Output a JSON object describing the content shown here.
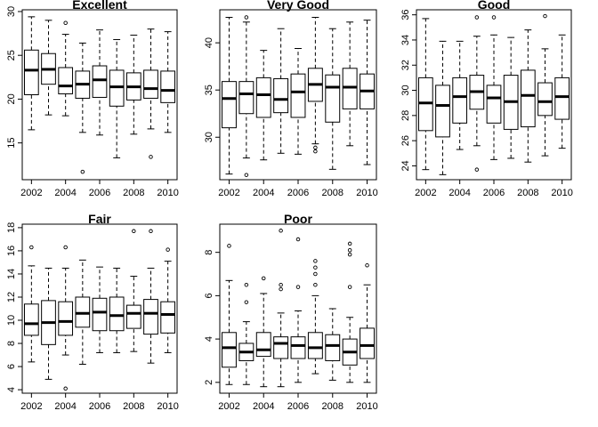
{
  "chart_data": [
    {
      "type": "box",
      "title": "Excellent",
      "xlabel": "",
      "ylabel": "",
      "x_ticks": [
        "2002",
        "2004",
        "2006",
        "2008",
        "2010"
      ],
      "y_ticks": [
        "15",
        "20",
        "25",
        "30"
      ],
      "ylim": [
        10.8,
        30.2
      ],
      "categories": [
        "2002",
        "2003",
        "2004",
        "2005",
        "2006",
        "2007",
        "2008",
        "2009",
        "2010"
      ],
      "boxes": [
        {
          "min": 16.5,
          "q1": 20.5,
          "median": 23.3,
          "q3": 25.6,
          "max": 29.4,
          "outliers": []
        },
        {
          "min": 18.2,
          "q1": 21.7,
          "median": 23.4,
          "q3": 25.2,
          "max": 29.0,
          "outliers": []
        },
        {
          "min": 18.1,
          "q1": 20.6,
          "median": 21.5,
          "q3": 23.6,
          "max": 27.4,
          "outliers": [
            28.7
          ]
        },
        {
          "min": 16.2,
          "q1": 20.1,
          "median": 21.7,
          "q3": 23.2,
          "max": 26.4,
          "outliers": [
            11.7
          ]
        },
        {
          "min": 15.9,
          "q1": 20.2,
          "median": 22.2,
          "q3": 23.8,
          "max": 27.9,
          "outliers": []
        },
        {
          "min": 13.3,
          "q1": 19.2,
          "median": 21.4,
          "q3": 23.3,
          "max": 26.8,
          "outliers": []
        },
        {
          "min": 16.0,
          "q1": 19.9,
          "median": 21.4,
          "q3": 23.0,
          "max": 27.3,
          "outliers": []
        },
        {
          "min": 16.6,
          "q1": 20.1,
          "median": 21.2,
          "q3": 23.3,
          "max": 28.0,
          "outliers": [
            13.4
          ]
        },
        {
          "min": 16.2,
          "q1": 19.6,
          "median": 21.0,
          "q3": 23.2,
          "max": 27.7,
          "outliers": []
        }
      ]
    },
    {
      "type": "box",
      "title": "Very Good",
      "xlabel": "",
      "ylabel": "",
      "x_ticks": [
        "2002",
        "2004",
        "2006",
        "2008",
        "2010"
      ],
      "y_ticks": [
        "30",
        "35",
        "40"
      ],
      "ylim": [
        25.5,
        43.5
      ],
      "categories": [
        "2002",
        "2003",
        "2004",
        "2005",
        "2006",
        "2007",
        "2008",
        "2009",
        "2010"
      ],
      "boxes": [
        {
          "min": 26.1,
          "q1": 31.0,
          "median": 34.1,
          "q3": 35.9,
          "max": 42.7,
          "outliers": []
        },
        {
          "min": 27.8,
          "q1": 32.5,
          "median": 34.6,
          "q3": 35.9,
          "max": 42.2,
          "outliers": [
            42.7,
            26.0
          ]
        },
        {
          "min": 27.6,
          "q1": 32.1,
          "median": 34.5,
          "q3": 36.3,
          "max": 39.2,
          "outliers": []
        },
        {
          "min": 28.3,
          "q1": 32.6,
          "median": 34.0,
          "q3": 36.2,
          "max": 41.5,
          "outliers": []
        },
        {
          "min": 28.2,
          "q1": 32.1,
          "median": 34.8,
          "q3": 36.7,
          "max": 39.4,
          "outliers": []
        },
        {
          "min": 29.3,
          "q1": 33.8,
          "median": 35.6,
          "q3": 37.3,
          "max": 42.7,
          "outliers": [
            28.9,
            28.5
          ]
        },
        {
          "min": 26.6,
          "q1": 31.6,
          "median": 35.3,
          "q3": 36.6,
          "max": 41.5,
          "outliers": []
        },
        {
          "min": 29.1,
          "q1": 33.0,
          "median": 35.3,
          "q3": 37.3,
          "max": 42.2,
          "outliers": []
        },
        {
          "min": 27.1,
          "q1": 33.0,
          "median": 34.9,
          "q3": 36.7,
          "max": 42.4,
          "outliers": []
        }
      ]
    },
    {
      "type": "box",
      "title": "Good",
      "xlabel": "",
      "ylabel": "",
      "x_ticks": [
        "2002",
        "2004",
        "2006",
        "2008",
        "2010"
      ],
      "y_ticks": [
        "24",
        "26",
        "28",
        "30",
        "32",
        "34",
        "36"
      ],
      "ylim": [
        22.9,
        36.4
      ],
      "categories": [
        "2002",
        "2003",
        "2004",
        "2005",
        "2006",
        "2007",
        "2008",
        "2009",
        "2010"
      ],
      "boxes": [
        {
          "min": 23.7,
          "q1": 26.8,
          "median": 29.0,
          "q3": 31.0,
          "max": 35.7,
          "outliers": []
        },
        {
          "min": 23.3,
          "q1": 26.3,
          "median": 28.8,
          "q3": 30.4,
          "max": 33.9,
          "outliers": []
        },
        {
          "min": 25.3,
          "q1": 27.4,
          "median": 29.5,
          "q3": 31.0,
          "max": 33.9,
          "outliers": []
        },
        {
          "min": 25.6,
          "q1": 28.5,
          "median": 29.9,
          "q3": 31.2,
          "max": 34.3,
          "outliers": [
            35.8,
            23.7
          ]
        },
        {
          "min": 24.5,
          "q1": 27.4,
          "median": 29.4,
          "q3": 30.4,
          "max": 34.4,
          "outliers": [
            35.8
          ]
        },
        {
          "min": 24.6,
          "q1": 26.9,
          "median": 29.1,
          "q3": 31.2,
          "max": 34.2,
          "outliers": []
        },
        {
          "min": 24.3,
          "q1": 27.1,
          "median": 29.6,
          "q3": 31.6,
          "max": 34.8,
          "outliers": []
        },
        {
          "min": 24.8,
          "q1": 28.0,
          "median": 29.1,
          "q3": 30.6,
          "max": 33.3,
          "outliers": [
            35.9
          ]
        },
        {
          "min": 25.4,
          "q1": 27.7,
          "median": 29.5,
          "q3": 31.0,
          "max": 34.4,
          "outliers": []
        }
      ]
    },
    {
      "type": "box",
      "title": "Fair",
      "xlabel": "",
      "ylabel": "",
      "x_ticks": [
        "2002",
        "2004",
        "2006",
        "2008",
        "2010"
      ],
      "y_ticks": [
        "4",
        "6",
        "8",
        "10",
        "12",
        "14",
        "16",
        "18"
      ],
      "ylim": [
        3.7,
        18.3
      ],
      "categories": [
        "2002",
        "2003",
        "2004",
        "2005",
        "2006",
        "2007",
        "2008",
        "2009",
        "2010"
      ],
      "boxes": [
        {
          "min": 6.4,
          "q1": 8.7,
          "median": 9.7,
          "q3": 11.4,
          "max": 14.7,
          "outliers": [
            16.3
          ]
        },
        {
          "min": 4.9,
          "q1": 7.9,
          "median": 9.8,
          "q3": 11.7,
          "max": 14.5,
          "outliers": []
        },
        {
          "min": 7.0,
          "q1": 8.7,
          "median": 9.9,
          "q3": 11.6,
          "max": 14.5,
          "outliers": [
            16.3,
            4.1
          ]
        },
        {
          "min": 6.2,
          "q1": 9.4,
          "median": 10.6,
          "q3": 12.0,
          "max": 15.2,
          "outliers": []
        },
        {
          "min": 7.2,
          "q1": 9.1,
          "median": 10.7,
          "q3": 11.9,
          "max": 14.6,
          "outliers": []
        },
        {
          "min": 7.2,
          "q1": 9.1,
          "median": 10.4,
          "q3": 12.0,
          "max": 14.5,
          "outliers": []
        },
        {
          "min": 7.3,
          "q1": 9.3,
          "median": 10.6,
          "q3": 11.3,
          "max": 13.8,
          "outliers": [
            17.7
          ]
        },
        {
          "min": 6.3,
          "q1": 8.8,
          "median": 10.6,
          "q3": 11.8,
          "max": 14.5,
          "outliers": [
            17.7
          ]
        },
        {
          "min": 7.2,
          "q1": 8.9,
          "median": 10.5,
          "q3": 11.6,
          "max": 15.1,
          "outliers": [
            16.1
          ]
        }
      ]
    },
    {
      "type": "box",
      "title": "Poor",
      "xlabel": "",
      "ylabel": "",
      "x_ticks": [
        "2002",
        "2004",
        "2006",
        "2008",
        "2010"
      ],
      "y_ticks": [
        "2",
        "4",
        "6",
        "8"
      ],
      "ylim": [
        1.5,
        9.3
      ],
      "categories": [
        "2002",
        "2003",
        "2004",
        "2005",
        "2006",
        "2007",
        "2008",
        "2009",
        "2010"
      ],
      "boxes": [
        {
          "min": 1.9,
          "q1": 2.7,
          "median": 3.6,
          "q3": 4.3,
          "max": 6.7,
          "outliers": [
            8.3
          ]
        },
        {
          "min": 1.9,
          "q1": 3.0,
          "median": 3.4,
          "q3": 3.8,
          "max": 4.8,
          "outliers": [
            6.5,
            5.7
          ]
        },
        {
          "min": 1.8,
          "q1": 3.2,
          "median": 3.5,
          "q3": 4.3,
          "max": 6.1,
          "outliers": [
            6.8
          ]
        },
        {
          "min": 1.8,
          "q1": 3.1,
          "median": 3.8,
          "q3": 4.1,
          "max": 5.2,
          "outliers": [
            9.0,
            6.5,
            6.3
          ]
        },
        {
          "min": 2.0,
          "q1": 3.1,
          "median": 3.7,
          "q3": 4.1,
          "max": 5.3,
          "outliers": [
            8.6,
            6.4
          ]
        },
        {
          "min": 2.4,
          "q1": 3.1,
          "median": 3.6,
          "q3": 4.3,
          "max": 6.0,
          "outliers": [
            7.6,
            7.3,
            7.0,
            6.5
          ]
        },
        {
          "min": 2.1,
          "q1": 3.0,
          "median": 3.7,
          "q3": 4.2,
          "max": 5.4,
          "outliers": []
        },
        {
          "min": 2.0,
          "q1": 2.8,
          "median": 3.4,
          "q3": 4.0,
          "max": 5.0,
          "outliers": [
            8.4,
            8.1,
            7.9,
            6.4
          ]
        },
        {
          "min": 2.0,
          "q1": 3.1,
          "median": 3.7,
          "q3": 4.5,
          "max": 6.5,
          "outliers": [
            7.4
          ]
        }
      ]
    }
  ]
}
